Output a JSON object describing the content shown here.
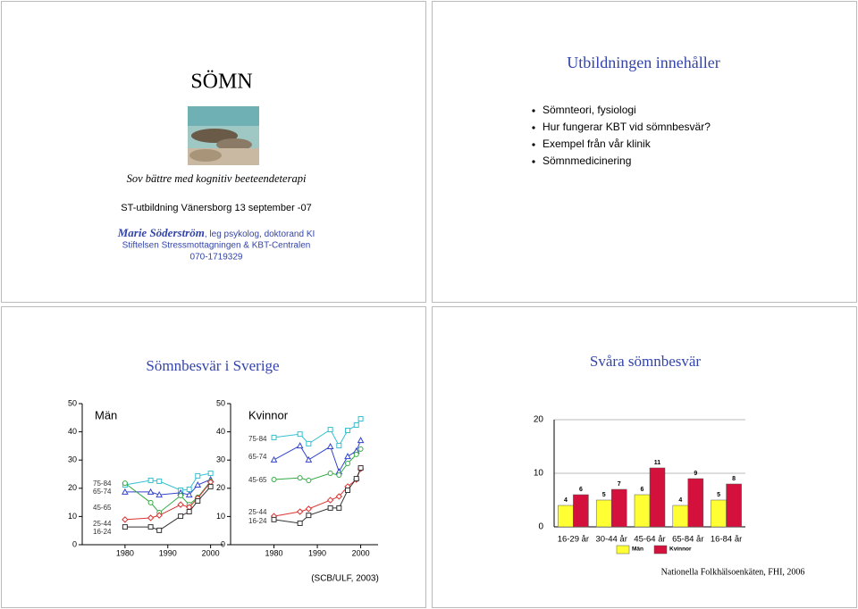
{
  "slides": [
    {
      "title": "SÖMN",
      "subtitle": "Sov bättre med kognitiv beeteendeterapi",
      "event": "ST-utbildning Vänersborg 13 september -07",
      "speaker": "Marie Söderström",
      "speaker_role": ", leg psykolog, doktorand KI",
      "organization": "Stiftelsen Stressmottagningen & KBT-Centralen",
      "phone": "070-1719329"
    },
    {
      "title": "Utbildningen innehåller",
      "bullets": [
        "Sömnteori, fysiologi",
        "Hur fungerar KBT vid sömnbesvär?",
        "Exempel från vår klinik",
        "Sömnmedicinering"
      ]
    },
    {
      "title": "Sömnbesvär i Sverige",
      "source": "(SCB/ULF, 2003)"
    },
    {
      "title": "Svåra sömnbesvär",
      "source": "Nationella Folkhälsoenkäten, FHI, 2006"
    }
  ],
  "chart_data": [
    {
      "type": "line",
      "title": "Män",
      "x": [
        1980,
        1986,
        1988,
        1993,
        1995,
        1997,
        2000
      ],
      "xlim": [
        1970,
        2003
      ],
      "xticks": [
        1980,
        1990,
        2000
      ],
      "ylim": [
        0,
        50
      ],
      "yticks": [
        0,
        10,
        20,
        30,
        40,
        50
      ],
      "series": [
        {
          "name": "75-84",
          "color": "#33c0d0",
          "marker": "square",
          "values": [
            21.2,
            22.8,
            22.5,
            19.3,
            19.6,
            24.4,
            25.3
          ]
        },
        {
          "name": "65-74",
          "color": "#3344cc",
          "marker": "triangle",
          "values": [
            18.7,
            18.7,
            17.7,
            18.4,
            17.7,
            21.2,
            23.1
          ]
        },
        {
          "name": "45-65",
          "color": "#33aa44",
          "marker": "circle",
          "values": [
            21.8,
            14.9,
            11.4,
            17.4,
            14.2,
            16.8,
            22.5
          ]
        },
        {
          "name": "25-44",
          "color": "#dd3333",
          "marker": "diamond",
          "values": [
            8.9,
            9.5,
            10.4,
            14.2,
            13.3,
            16.5,
            22.2
          ]
        },
        {
          "name": "16-24",
          "color": "#333333",
          "marker": "square",
          "values": [
            6.3,
            6.3,
            5.1,
            10.1,
            11.7,
            15.5,
            20.6
          ]
        }
      ]
    },
    {
      "type": "line",
      "title": "Kvinnor",
      "x": [
        1980,
        1986,
        1988,
        1993,
        1995,
        1997,
        1999,
        2000
      ],
      "xlim": [
        1970,
        2004
      ],
      "xticks": [
        1980,
        1990,
        2000
      ],
      "ylim": [
        0,
        50
      ],
      "yticks": [
        0,
        10,
        20,
        30,
        40,
        50
      ],
      "series": [
        {
          "name": "75-84",
          "color": "#33c0d0",
          "marker": "square",
          "values": [
            38.0,
            39.2,
            35.8,
            40.8,
            35.1,
            40.5,
            42.4,
            44.6
          ]
        },
        {
          "name": "65-74",
          "color": "#3344cc",
          "marker": "triangle",
          "values": [
            30.1,
            35.1,
            30.1,
            34.8,
            25.9,
            31.3,
            33.2,
            37.0
          ]
        },
        {
          "name": "45-65",
          "color": "#33aa44",
          "marker": "circle",
          "values": [
            23.1,
            23.7,
            22.8,
            25.3,
            24.7,
            28.8,
            32.0,
            33.9
          ]
        },
        {
          "name": "25-44",
          "color": "#dd3333",
          "marker": "diamond",
          "values": [
            10.1,
            11.7,
            12.7,
            15.8,
            17.1,
            20.6,
            23.1,
            26.9
          ]
        },
        {
          "name": "16-24",
          "color": "#333333",
          "marker": "square",
          "values": [
            8.9,
            7.6,
            10.4,
            13.0,
            13.0,
            19.3,
            23.4,
            27.2
          ]
        }
      ]
    },
    {
      "type": "bar",
      "categories": [
        "16-29 år",
        "30-44 år",
        "45-64 år",
        "65-84 år",
        "16-84 år"
      ],
      "ylim": [
        0,
        20
      ],
      "yticks": [
        0,
        10,
        20
      ],
      "grid": true,
      "series": [
        {
          "name": "Män",
          "color": "#ffff33",
          "values": [
            4,
            5,
            6,
            4,
            5
          ]
        },
        {
          "name": "Kvinnor",
          "color": "#d4113d",
          "values": [
            6,
            7,
            11,
            9,
            8
          ]
        }
      ]
    }
  ]
}
